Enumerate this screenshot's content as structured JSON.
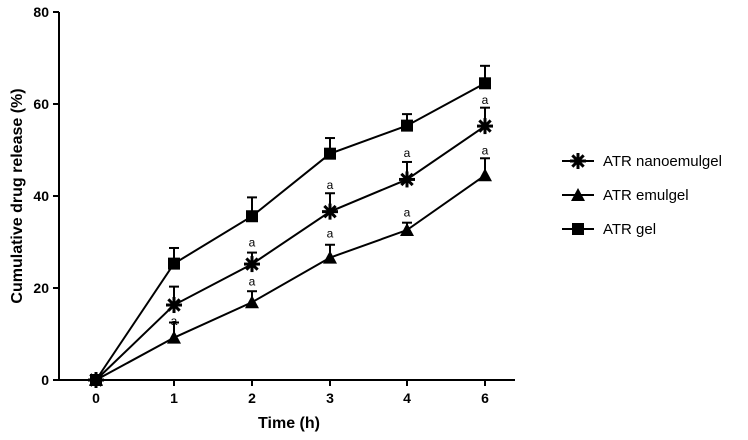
{
  "chart_data": {
    "type": "line",
    "xlabel": "Time (h)",
    "ylabel": "Cumulative drug release (%)",
    "x": [
      0,
      1,
      2,
      3,
      4,
      6
    ],
    "x_tick_labels": [
      "0",
      "1",
      "2",
      "3",
      "4",
      "6"
    ],
    "ylim": [
      0,
      80
    ],
    "y_ticks": [
      0,
      20,
      40,
      60,
      80
    ],
    "y_tick_labels": [
      "0",
      "20",
      "40",
      "60",
      "80"
    ],
    "grid": false,
    "legend_position": "right",
    "series": [
      {
        "name": "ATR nanoemulgel",
        "marker": "asterisk",
        "values": [
          0,
          16.3,
          25.2,
          36.6,
          43.6,
          55.2
        ],
        "errors": [
          0,
          4.0,
          2.5,
          4.0,
          3.8,
          4.0
        ]
      },
      {
        "name": "ATR emulgel",
        "marker": "triangle",
        "values": [
          0,
          9.2,
          16.9,
          26.6,
          32.6,
          44.5
        ],
        "errors": [
          0,
          3.3,
          2.4,
          2.8,
          1.6,
          3.7
        ]
      },
      {
        "name": "ATR gel",
        "marker": "square",
        "values": [
          0,
          25.3,
          35.6,
          49.2,
          55.3,
          64.5
        ],
        "errors": [
          0,
          3.4,
          4.1,
          3.4,
          2.5,
          3.8
        ]
      }
    ],
    "annotations": [
      {
        "text": "a",
        "x": 1,
        "y": 12.0
      },
      {
        "text": "a",
        "x": 2,
        "y": 29.0
      },
      {
        "text": "a",
        "x": 2,
        "y": 20.5
      },
      {
        "text": "a",
        "x": 3,
        "y": 41.5
      },
      {
        "text": "a",
        "x": 3,
        "y": 31.0
      },
      {
        "text": "a",
        "x": 4,
        "y": 48.5
      },
      {
        "text": "a",
        "x": 4,
        "y": 35.5
      },
      {
        "text": "a",
        "x": 6,
        "y": 60.0
      },
      {
        "text": "a",
        "x": 6,
        "y": 49.0
      }
    ]
  }
}
